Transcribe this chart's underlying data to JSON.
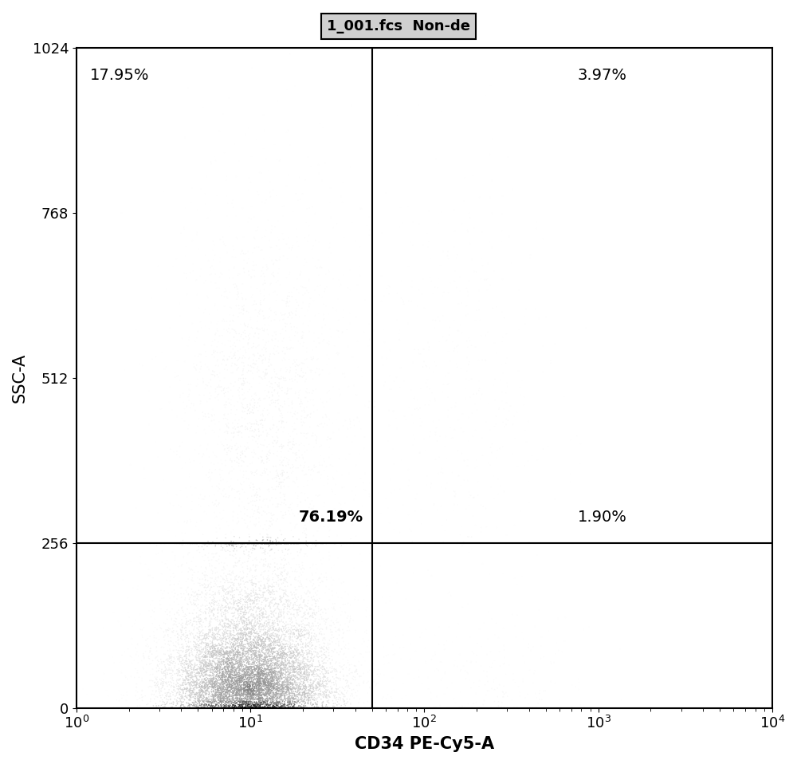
{
  "title": "1_001.fcs  Non-de",
  "xlabel": "CD34 PE-Cy5-A",
  "ylabel": "SSC-A",
  "xlim": [
    1,
    10000
  ],
  "ylim": [
    0,
    1024
  ],
  "yticks": [
    0,
    256,
    512,
    768,
    1024
  ],
  "gate_x": 50,
  "gate_y": 256,
  "quadrant_labels": {
    "UL": "17.95%",
    "UR": "3.97%",
    "LL": "76.19%",
    "LR": "1.90%"
  },
  "background_color": "#ffffff",
  "scatter_color_dense": "#555555",
  "scatter_color_light": "#aaaaaa",
  "n_points": 15000,
  "seed": 42
}
